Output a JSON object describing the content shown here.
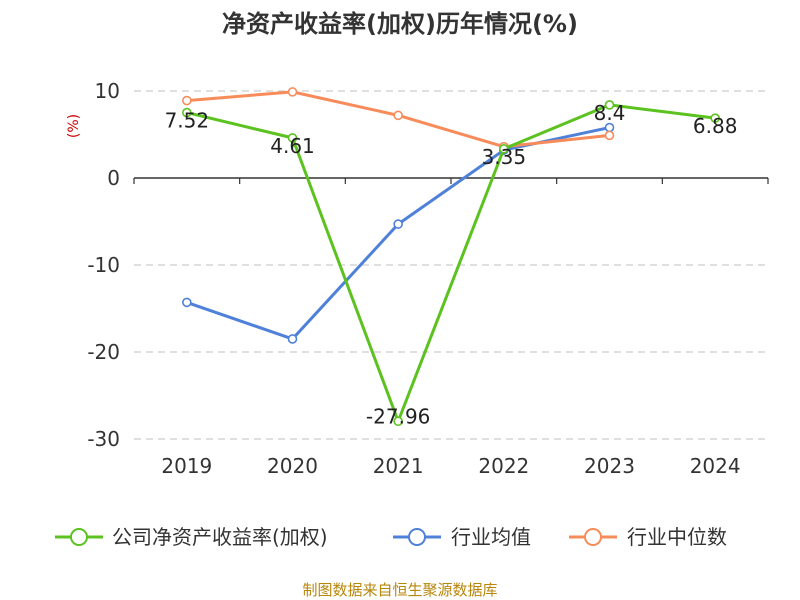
{
  "colors": {
    "roe": "#5bc21f",
    "industry_avg": "#4f81d9",
    "industry_median": "#f78b5a",
    "unit": "#cc0000",
    "source": "#b8860b"
  },
  "chart_data": {
    "type": "line",
    "title": "净资产收益率(加权)历年情况(%)",
    "ylabel": "(%)",
    "categories": [
      "2019",
      "2020",
      "2021",
      "2022",
      "2023",
      "2024"
    ],
    "ylim": [
      -30,
      10
    ],
    "yticks": [
      10,
      0,
      -10,
      -20,
      -30
    ],
    "ytick_labels": [
      "10",
      "0",
      "-10",
      "-20",
      "-30"
    ],
    "grid": true,
    "legend_position": "bottom",
    "series": [
      {
        "name": "公司净资产收益率(加权)",
        "color_key": "roe",
        "values": [
          7.52,
          4.61,
          -27.96,
          3.35,
          8.4,
          6.88
        ],
        "labels": [
          "7.52",
          "4.61",
          "-27.96",
          "3.35",
          "8.4",
          "6.88"
        ]
      },
      {
        "name": "行业均值",
        "color_key": "industry_avg",
        "values": [
          -14.3,
          -18.5,
          -5.3,
          3.2,
          5.8,
          null
        ]
      },
      {
        "name": "行业中位数",
        "color_key": "industry_median",
        "values": [
          8.9,
          9.9,
          7.2,
          3.6,
          4.9,
          null
        ]
      }
    ]
  },
  "source": "制图数据来自恒生聚源数据库"
}
